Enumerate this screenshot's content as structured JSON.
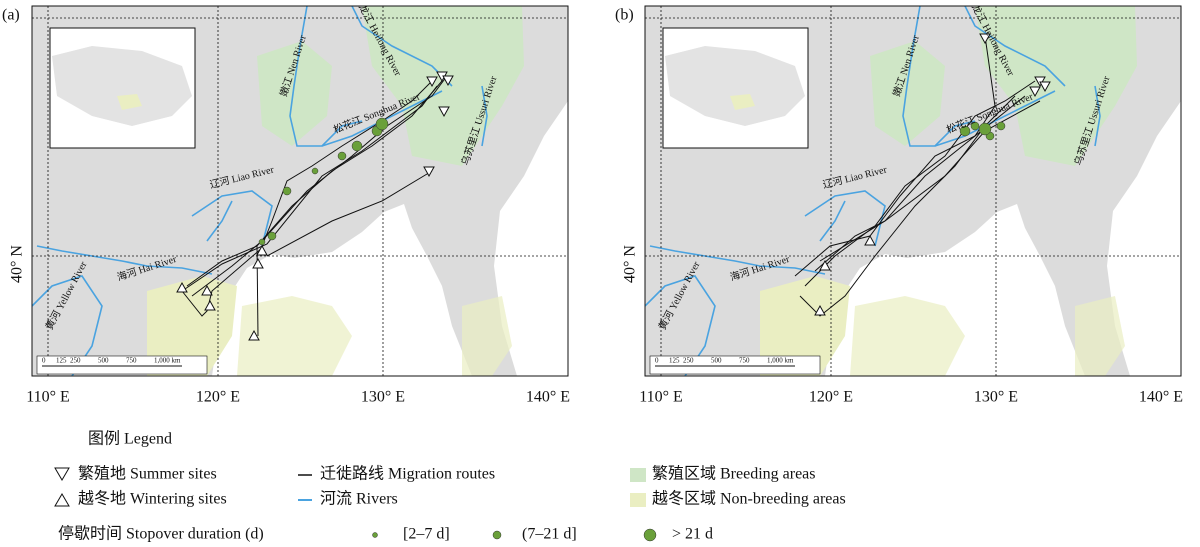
{
  "panels": [
    {
      "label": "(a)",
      "x_ticks": [
        "110° E",
        "120° E",
        "130° E",
        "140° E"
      ],
      "y_label": "40° N"
    },
    {
      "label": "(b)",
      "x_ticks": [
        "110° E",
        "120° E",
        "130° E",
        "140° E"
      ],
      "y_label": "40° N"
    }
  ],
  "map_labels": [
    "嫩江 Nen River",
    "黑龙江 Heilong River",
    "松花江 Songhua River",
    "乌苏里江 Ussuri River",
    "辽河 Liao River",
    "海河 Hai River",
    "黄河 Yellow River"
  ],
  "scale_bar": [
    "0",
    "125",
    "250",
    "500",
    "750",
    "1,000 km"
  ],
  "legend": {
    "title": "图例 Legend",
    "items": [
      "繁殖地 Summer sites",
      "越冬地 Wintering sites",
      "迁徙路线 Migration routes",
      "河流 Rivers",
      "繁殖区域 Breeding areas",
      "越冬区域 Non-breeding areas"
    ],
    "stopover_title": "停歇时间 Stopover duration (d)",
    "stopover_classes": [
      "[2–7 d]",
      "(7–21 d]",
      "> 21 d"
    ]
  }
}
